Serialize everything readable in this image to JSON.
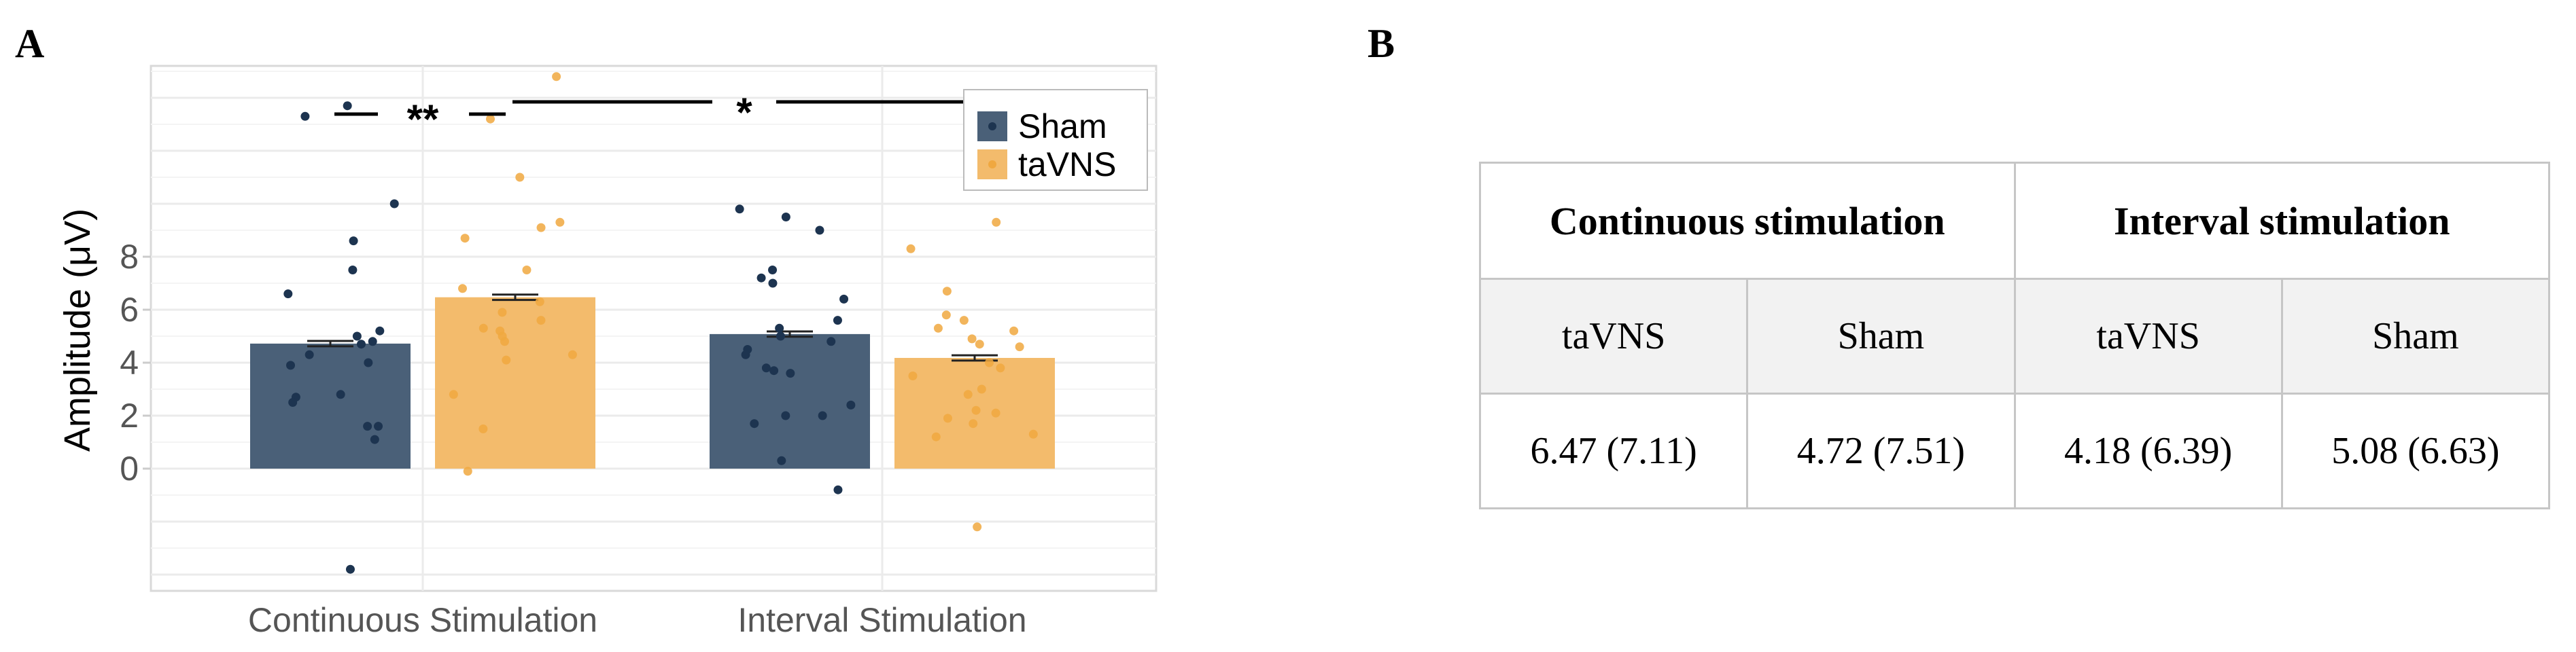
{
  "panels": {
    "a": "A",
    "b": "B"
  },
  "chart_data": {
    "type": "bar",
    "ylabel": "Amplitude (μV)",
    "ylim": [
      -4.5,
      15.3
    ],
    "yticks": [
      0,
      2,
      4,
      6,
      8
    ],
    "categories": [
      "Continuous Stimulation",
      "Interval Stimulation"
    ],
    "series": [
      {
        "name": "Sham",
        "color": "#4a6078",
        "dot_color": "#1d3450",
        "values": [
          4.72,
          5.08
        ],
        "errors": [
          0.1,
          0.1
        ],
        "points": [
          [
            -3.8,
            13.3,
            13.7,
            10.0,
            8.6,
            7.5,
            6.6,
            5.2,
            5.0,
            4.8,
            4.7,
            4.3,
            4.0,
            3.9,
            2.8,
            2.7,
            2.5,
            1.6,
            1.6,
            1.1
          ],
          [
            9.8,
            9.5,
            9.0,
            7.5,
            7.2,
            7.0,
            6.4,
            5.6,
            5.3,
            5.0,
            4.8,
            4.5,
            4.3,
            3.8,
            3.7,
            3.6,
            2.4,
            2.0,
            2.0,
            1.7,
            0.3,
            -0.8
          ]
        ]
      },
      {
        "name": "taVNS",
        "color": "#f3bb6c",
        "dot_color": "#f0a840",
        "values": [
          6.47,
          4.18
        ],
        "errors": [
          0.1,
          0.1
        ],
        "points": [
          [
            14.8,
            13.2,
            11.0,
            9.3,
            9.1,
            8.7,
            7.5,
            6.8,
            6.3,
            5.9,
            5.6,
            5.3,
            5.2,
            5.0,
            4.8,
            4.3,
            4.1,
            2.8,
            1.5,
            -0.1
          ],
          [
            9.3,
            8.3,
            6.7,
            5.8,
            5.6,
            5.3,
            5.2,
            4.9,
            4.7,
            4.6,
            4.0,
            3.8,
            3.5,
            3.0,
            2.8,
            2.2,
            2.1,
            1.9,
            1.7,
            1.3,
            1.2,
            -2.2
          ]
        ]
      }
    ],
    "legend": {
      "position": "top-right",
      "entries": [
        "Sham",
        "taVNS"
      ]
    },
    "significance": [
      {
        "label": "**",
        "between": "Continuous Stimulation: Sham vs taVNS"
      },
      {
        "label": "*",
        "between": "taVNS: Continuous vs Interval"
      }
    ]
  },
  "table": {
    "headers": [
      "Continuous stimulation",
      "Interval stimulation"
    ],
    "subheaders": [
      "taVNS",
      "Sham",
      "taVNS",
      "Sham"
    ],
    "values": [
      "6.47 (7.11)",
      "4.72 (7.51)",
      "4.18 (6.39)",
      "5.08 (6.63)"
    ]
  }
}
